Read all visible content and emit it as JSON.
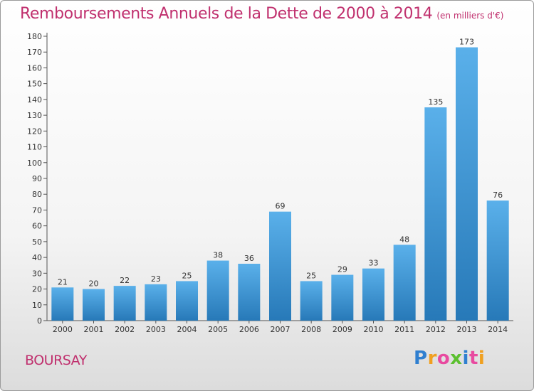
{
  "title": "Remboursements Annuels de la Dette de 2000 à 2014",
  "subtitle": "(en milliers d'€)",
  "city": "BOURSAY",
  "logo": {
    "letters": [
      "P",
      "r",
      "o",
      "x",
      "i",
      "t",
      "i"
    ],
    "colors": [
      "#2f7fd0",
      "#f0a020",
      "#e84aa0",
      "#5cc030",
      "#2f7fd0",
      "#e84aa0",
      "#f0a020"
    ]
  },
  "colors": {
    "bar_top": "#5ab0ea",
    "bar_bottom": "#2779b8",
    "title": "#c0306e"
  },
  "chart_data": {
    "type": "bar",
    "title": "Remboursements Annuels de la Dette de 2000 à 2014",
    "subtitle": "(en milliers d'€)",
    "xlabel": "",
    "ylabel": "",
    "ylim": [
      0,
      180
    ],
    "yticks": [
      0,
      10,
      20,
      30,
      40,
      50,
      60,
      70,
      80,
      90,
      100,
      110,
      120,
      130,
      140,
      150,
      160,
      170,
      180
    ],
    "grid": false,
    "categories": [
      "2000",
      "2001",
      "2002",
      "2003",
      "2004",
      "2005",
      "2006",
      "2007",
      "2008",
      "2009",
      "2010",
      "2011",
      "2012",
      "2013",
      "2014"
    ],
    "values": [
      21,
      20,
      22,
      23,
      25,
      38,
      36,
      69,
      25,
      29,
      33,
      48,
      135,
      173,
      76
    ]
  }
}
